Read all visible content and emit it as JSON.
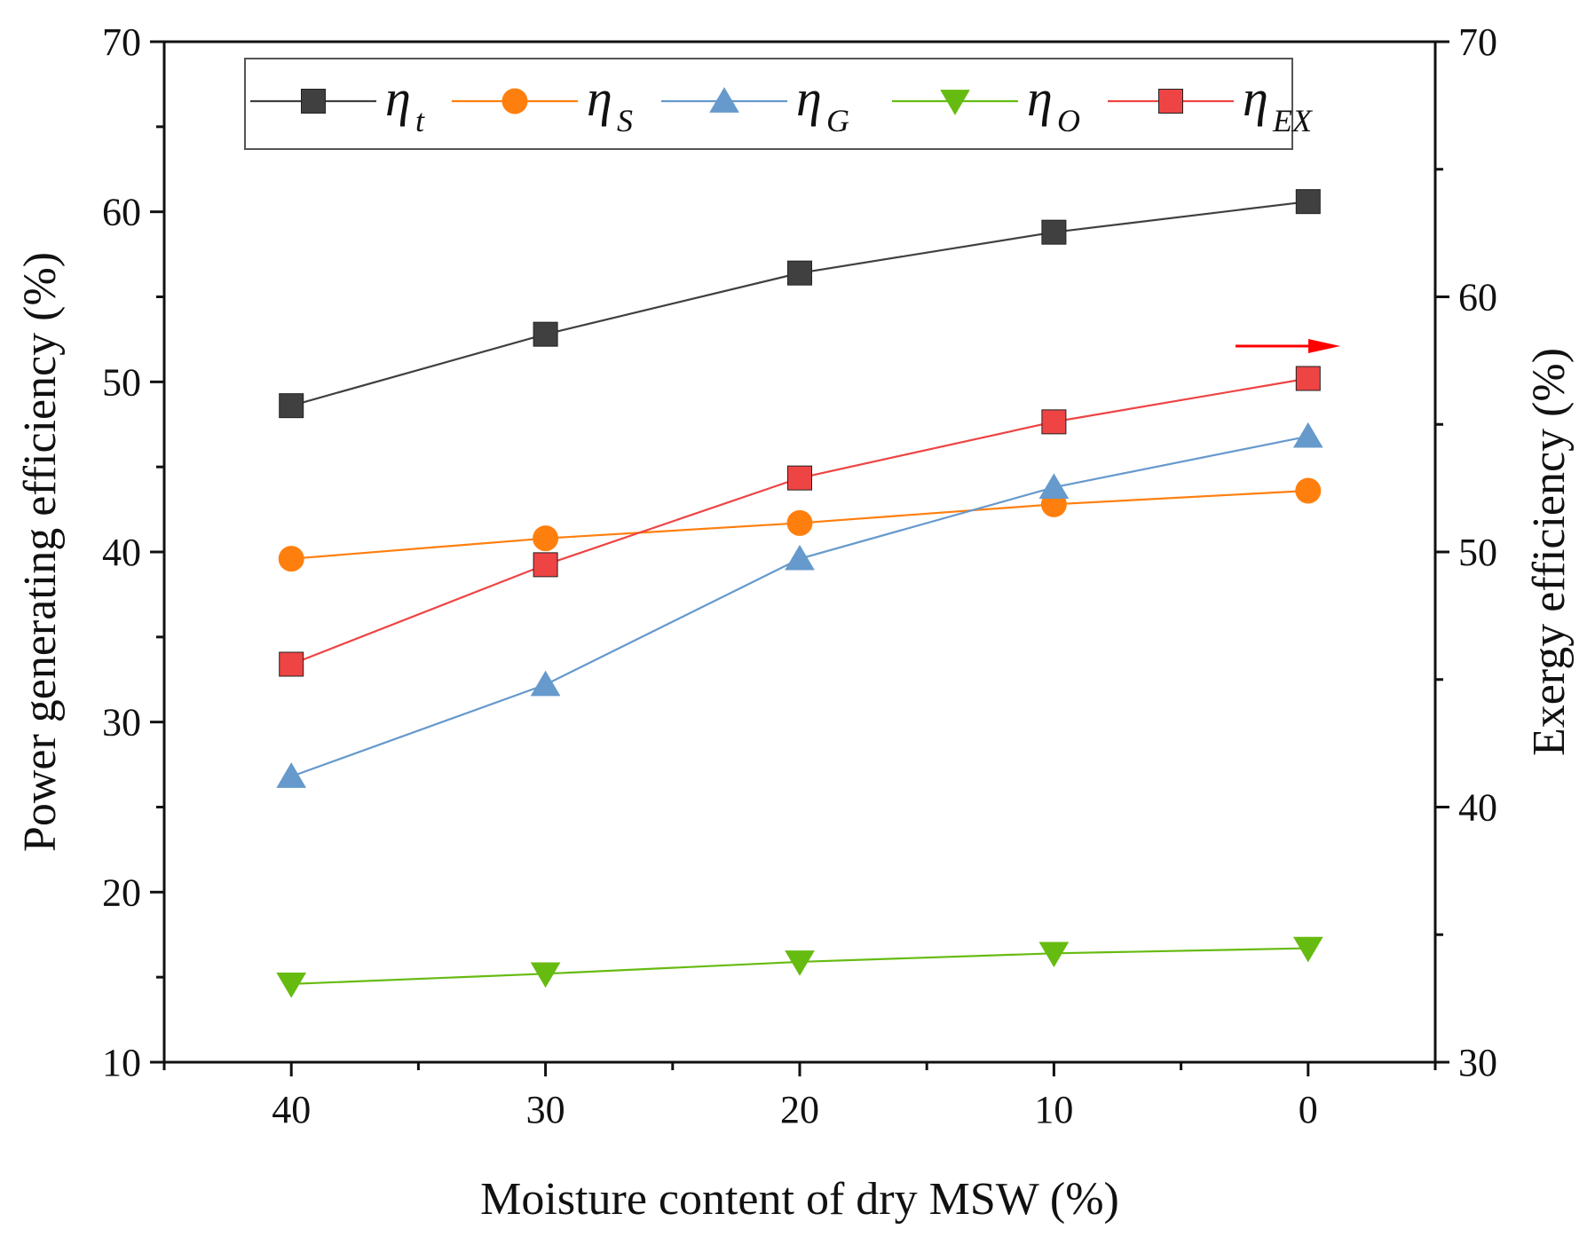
{
  "chart_data": {
    "type": "line",
    "categories": [
      "40",
      "30",
      "20",
      "10",
      "0"
    ],
    "x": [
      40,
      30,
      20,
      10,
      0
    ],
    "xlabel": "Moisture content of dry MSW (%)",
    "ylabel": "Power generating efficiency (%)",
    "y2label": "Exergy efficiency (%)",
    "xlim": [
      45,
      -5
    ],
    "ylim": [
      10,
      70
    ],
    "y2lim": [
      30,
      70
    ],
    "yticks": [
      10,
      20,
      30,
      40,
      50,
      60,
      70
    ],
    "y2ticks": [
      30,
      40,
      50,
      60,
      70
    ],
    "xticks": [
      40,
      30,
      20,
      10,
      0
    ],
    "legend_position": "top",
    "series": [
      {
        "name": "η",
        "sub": "t",
        "axis": "left",
        "marker": "square",
        "color": "#404040",
        "values": [
          48.6,
          52.8,
          56.4,
          58.8,
          60.6
        ]
      },
      {
        "name": "η",
        "sub": "S",
        "axis": "left",
        "marker": "circle",
        "color": "#ff7f0e",
        "values": [
          39.6,
          40.8,
          41.7,
          42.8,
          43.6
        ]
      },
      {
        "name": "η",
        "sub": "G",
        "axis": "left",
        "marker": "triangle-up",
        "color": "#6699cc",
        "values": [
          26.8,
          32.2,
          39.6,
          43.8,
          46.8
        ]
      },
      {
        "name": "η",
        "sub": "O",
        "axis": "left",
        "marker": "triangle-down",
        "color": "#66bb11",
        "values": [
          14.6,
          15.2,
          15.9,
          16.4,
          16.7
        ]
      },
      {
        "name": "η",
        "sub": "EX",
        "axis": "right",
        "marker": "square",
        "color": "#ee4444",
        "values": [
          45.6,
          49.5,
          52.9,
          55.1,
          56.8
        ]
      }
    ],
    "annotation": {
      "type": "arrow",
      "direction": "right",
      "color": "#ff0000",
      "points_to": "y2 axis"
    }
  }
}
